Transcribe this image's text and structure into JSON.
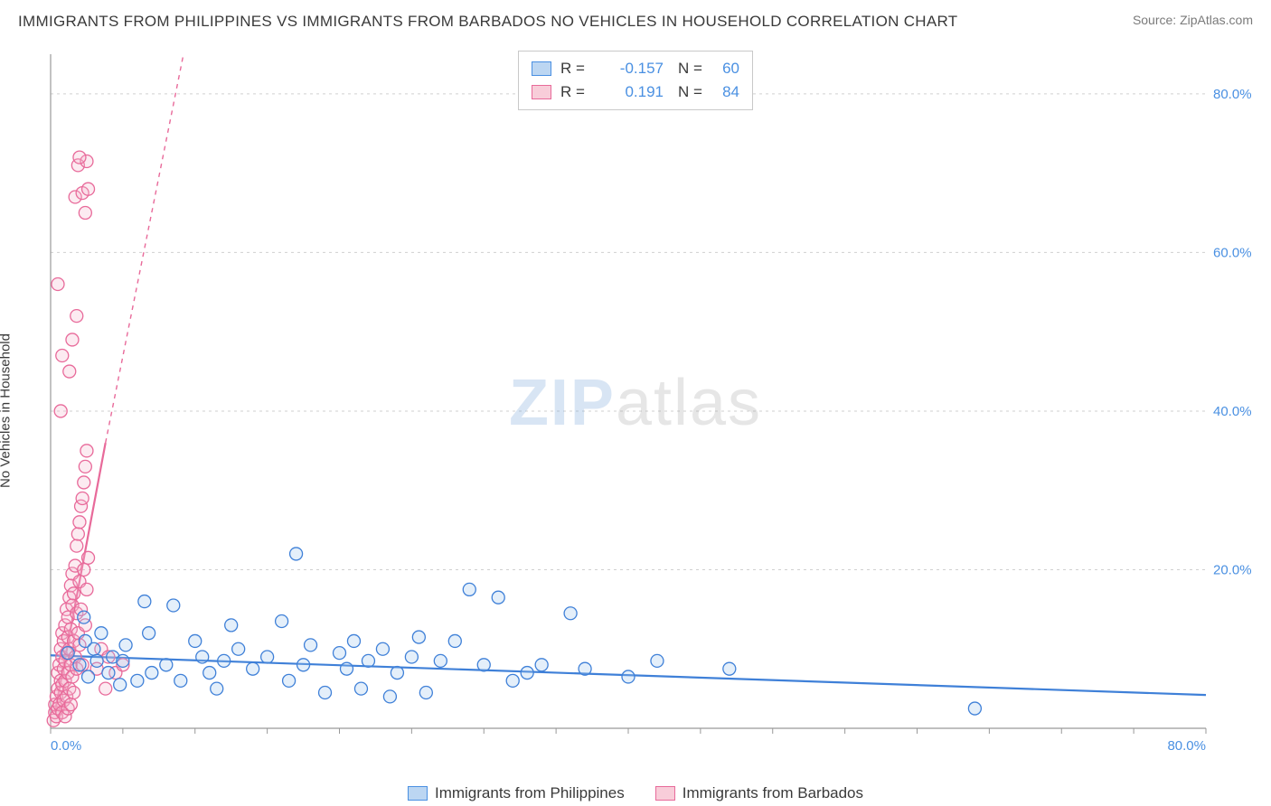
{
  "title": "IMMIGRANTS FROM PHILIPPINES VS IMMIGRANTS FROM BARBADOS NO VEHICLES IN HOUSEHOLD CORRELATION CHART",
  "source": "Source: ZipAtlas.com",
  "y_axis_label": "No Vehicles in Household",
  "watermark_a": "ZIP",
  "watermark_b": "atlas",
  "chart": {
    "type": "scatter",
    "xlim": [
      0,
      80
    ],
    "ylim": [
      0,
      85
    ],
    "x_ticks": [
      0,
      80
    ],
    "y_ticks": [
      20,
      40,
      60,
      80
    ],
    "x_tick_labels": [
      "0.0%",
      "80.0%"
    ],
    "y_tick_labels": [
      "20.0%",
      "40.0%",
      "60.0%",
      "80.0%"
    ],
    "grid_color": "#d0d0d0",
    "axis_color": "#999999",
    "background_color": "#ffffff",
    "tick_label_color": "#4a90e2",
    "marker_radius": 7,
    "marker_stroke_width": 1.3,
    "marker_fill_opacity": 0.28,
    "series": [
      {
        "name": "Immigrants from Philippines",
        "color_stroke": "#3f80d8",
        "color_fill": "#9fc5ee",
        "swatch_fill": "#bcd6f2",
        "swatch_border": "#4a90e2",
        "R": "-0.157",
        "N": "60",
        "regression": {
          "x1": 0,
          "y1": 9.2,
          "x2": 80,
          "y2": 4.2,
          "solid": true
        },
        "points": [
          [
            1.2,
            9.5
          ],
          [
            2.0,
            8.0
          ],
          [
            2.4,
            11.0
          ],
          [
            2.6,
            6.5
          ],
          [
            3.0,
            10.0
          ],
          [
            3.2,
            8.5
          ],
          [
            3.5,
            12.0
          ],
          [
            4.0,
            7.0
          ],
          [
            4.3,
            9.0
          ],
          [
            5.0,
            8.5
          ],
          [
            5.2,
            10.5
          ],
          [
            6.0,
            6.0
          ],
          [
            6.5,
            16.0
          ],
          [
            7.0,
            7.0
          ],
          [
            8.0,
            8.0
          ],
          [
            8.5,
            15.5
          ],
          [
            9.0,
            6.0
          ],
          [
            10.0,
            11.0
          ],
          [
            10.5,
            9.0
          ],
          [
            11.0,
            7.0
          ],
          [
            12.0,
            8.5
          ],
          [
            12.5,
            13.0
          ],
          [
            13.0,
            10.0
          ],
          [
            14.0,
            7.5
          ],
          [
            15.0,
            9.0
          ],
          [
            16.0,
            13.5
          ],
          [
            17.0,
            22.0
          ],
          [
            17.5,
            8.0
          ],
          [
            18.0,
            10.5
          ],
          [
            19.0,
            4.5
          ],
          [
            20.0,
            9.5
          ],
          [
            20.5,
            7.5
          ],
          [
            21.0,
            11.0
          ],
          [
            21.5,
            5.0
          ],
          [
            22.0,
            8.5
          ],
          [
            23.0,
            10.0
          ],
          [
            23.5,
            4.0
          ],
          [
            24.0,
            7.0
          ],
          [
            25.0,
            9.0
          ],
          [
            25.5,
            11.5
          ],
          [
            26.0,
            4.5
          ],
          [
            27.0,
            8.5
          ],
          [
            28.0,
            11.0
          ],
          [
            29.0,
            17.5
          ],
          [
            30.0,
            8.0
          ],
          [
            31.0,
            16.5
          ],
          [
            32.0,
            6.0
          ],
          [
            33.0,
            7.0
          ],
          [
            34.0,
            8.0
          ],
          [
            36.0,
            14.5
          ],
          [
            37.0,
            7.5
          ],
          [
            40.0,
            6.5
          ],
          [
            42.0,
            8.5
          ],
          [
            47.0,
            7.5
          ],
          [
            64.0,
            2.5
          ],
          [
            2.3,
            14.0
          ],
          [
            4.8,
            5.5
          ],
          [
            6.8,
            12.0
          ],
          [
            11.5,
            5.0
          ],
          [
            16.5,
            6.0
          ]
        ]
      },
      {
        "name": "Immigrants from Barbados",
        "color_stroke": "#e86a9a",
        "color_fill": "#f6b6ce",
        "swatch_fill": "#f8cdd9",
        "swatch_border": "#e86a9a",
        "R": "0.191",
        "N": "84",
        "regression": {
          "x1": 0.3,
          "y1": 2,
          "x2": 3.8,
          "y2": 36,
          "solid": true
        },
        "regression_dash": {
          "x1": 3.8,
          "y1": 36,
          "x2": 9.2,
          "y2": 85
        },
        "points": [
          [
            0.2,
            1.0
          ],
          [
            0.3,
            2.0
          ],
          [
            0.3,
            3.0
          ],
          [
            0.4,
            1.5
          ],
          [
            0.4,
            4.0
          ],
          [
            0.5,
            2.5
          ],
          [
            0.5,
            5.0
          ],
          [
            0.5,
            7.0
          ],
          [
            0.6,
            3.0
          ],
          [
            0.6,
            8.0
          ],
          [
            0.7,
            4.5
          ],
          [
            0.7,
            6.0
          ],
          [
            0.7,
            10.0
          ],
          [
            0.8,
            2.0
          ],
          [
            0.8,
            5.5
          ],
          [
            0.8,
            9.0
          ],
          [
            0.8,
            12.0
          ],
          [
            0.9,
            3.5
          ],
          [
            0.9,
            7.5
          ],
          [
            0.9,
            11.0
          ],
          [
            1.0,
            1.5
          ],
          [
            1.0,
            6.0
          ],
          [
            1.0,
            8.5
          ],
          [
            1.0,
            13.0
          ],
          [
            1.1,
            4.0
          ],
          [
            1.1,
            9.5
          ],
          [
            1.1,
            15.0
          ],
          [
            1.2,
            2.5
          ],
          [
            1.2,
            7.0
          ],
          [
            1.2,
            11.5
          ],
          [
            1.2,
            14.0
          ],
          [
            1.3,
            5.0
          ],
          [
            1.3,
            10.0
          ],
          [
            1.3,
            16.5
          ],
          [
            1.4,
            3.0
          ],
          [
            1.4,
            8.0
          ],
          [
            1.4,
            12.5
          ],
          [
            1.4,
            18.0
          ],
          [
            1.5,
            6.5
          ],
          [
            1.5,
            15.5
          ],
          [
            1.5,
            19.5
          ],
          [
            1.6,
            4.5
          ],
          [
            1.6,
            11.0
          ],
          [
            1.6,
            17.0
          ],
          [
            1.7,
            9.0
          ],
          [
            1.7,
            20.5
          ],
          [
            1.8,
            7.5
          ],
          [
            1.8,
            14.5
          ],
          [
            1.8,
            23.0
          ],
          [
            1.9,
            12.0
          ],
          [
            1.9,
            24.5
          ],
          [
            2.0,
            10.5
          ],
          [
            2.0,
            18.5
          ],
          [
            2.0,
            26.0
          ],
          [
            2.1,
            15.0
          ],
          [
            2.1,
            28.0
          ],
          [
            2.2,
            8.0
          ],
          [
            2.2,
            29.0
          ],
          [
            2.3,
            20.0
          ],
          [
            2.3,
            31.0
          ],
          [
            2.4,
            13.0
          ],
          [
            2.4,
            33.0
          ],
          [
            2.5,
            17.5
          ],
          [
            2.5,
            35.0
          ],
          [
            2.6,
            21.5
          ],
          [
            0.7,
            40.0
          ],
          [
            1.3,
            45.0
          ],
          [
            0.8,
            47.0
          ],
          [
            1.5,
            49.0
          ],
          [
            1.8,
            52.0
          ],
          [
            0.5,
            56.0
          ],
          [
            2.4,
            65.0
          ],
          [
            1.7,
            67.0
          ],
          [
            2.2,
            67.5
          ],
          [
            2.6,
            68.0
          ],
          [
            1.9,
            71.0
          ],
          [
            2.5,
            71.5
          ],
          [
            2.0,
            72.0
          ],
          [
            3.2,
            7.5
          ],
          [
            3.5,
            10.0
          ],
          [
            3.8,
            5.0
          ],
          [
            4.0,
            9.0
          ],
          [
            4.5,
            7.0
          ],
          [
            5.0,
            8.0
          ]
        ]
      }
    ]
  },
  "legend_bottom": [
    {
      "label": "Immigrants from Philippines",
      "fill": "#bcd6f2",
      "border": "#4a90e2"
    },
    {
      "label": "Immigrants from Barbados",
      "fill": "#f8cdd9",
      "border": "#e86a9a"
    }
  ]
}
